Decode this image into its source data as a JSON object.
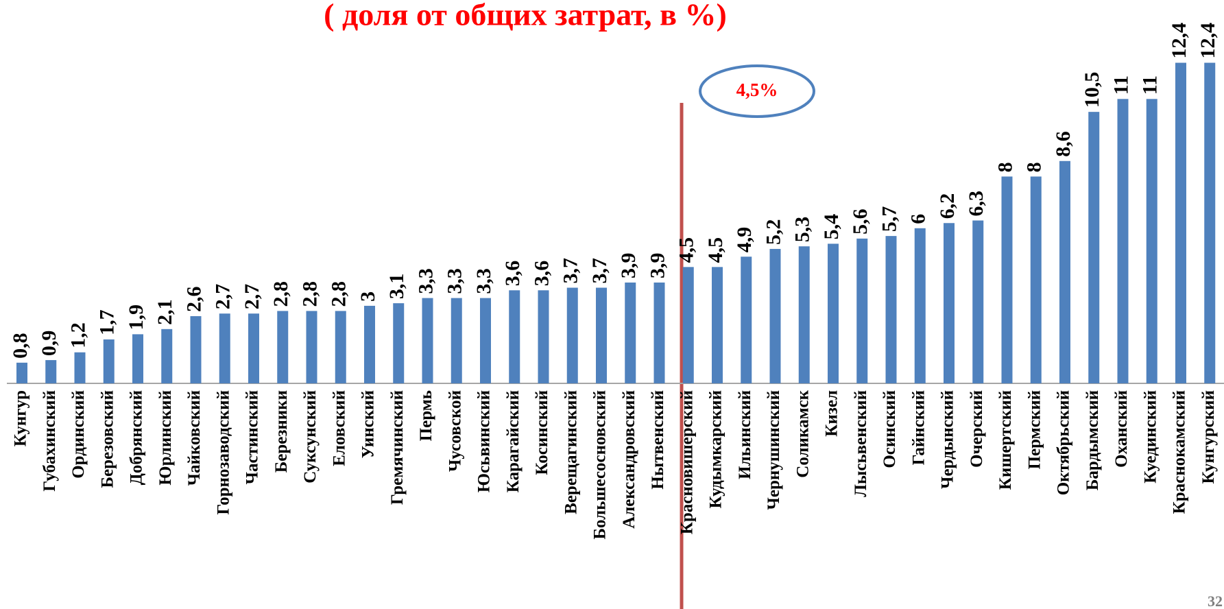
{
  "chart_data": {
    "type": "bar",
    "title": "( доля от общих затрат, в %)",
    "annotation": "4,5%",
    "page_number": "32",
    "color": "#4f81bd",
    "categories": [
      "Кунгур",
      "Губахинский",
      "Ординский",
      "Березовский",
      "Добрянский",
      "Юрлинский",
      "Чайковский",
      "Горнозаводский",
      "Частинский",
      "Березники",
      "Суксунский",
      "Еловский",
      "Уинский",
      "Гремячинский",
      "Пермь",
      "Чусовской",
      "Юсьвинский",
      "Карагайский",
      "Косинский",
      "Верещагинский",
      "Большесосновский",
      "Александровский",
      "Нытвенский",
      "Красновишерский",
      "Кудымкарский",
      "Ильинский",
      "Чернушинский",
      "Соликамск",
      "Кизел",
      "Лысьвенский",
      "Осинский",
      "Гайнский",
      "Чердынский",
      "Очерский",
      "Кишертский",
      "Пермский",
      "Октябрьский",
      "Бардымский",
      "Оханский",
      "Куединский",
      "Краснокамский",
      "Кунгурский"
    ],
    "values": [
      0.8,
      0.9,
      1.2,
      1.7,
      1.9,
      2.1,
      2.6,
      2.7,
      2.7,
      2.8,
      2.8,
      2.8,
      3,
      3.1,
      3.3,
      3.3,
      3.3,
      3.6,
      3.6,
      3.7,
      3.7,
      3.9,
      3.9,
      4.5,
      4.5,
      4.9,
      5.2,
      5.3,
      5.4,
      5.6,
      5.7,
      6,
      6.2,
      6.3,
      8,
      8,
      8.6,
      10.5,
      11,
      11,
      12.4,
      12.4
    ],
    "value_labels": [
      "0,8",
      "0,9",
      "1,2",
      "1,7",
      "1,9",
      "2,1",
      "2,6",
      "2,7",
      "2,7",
      "2,8",
      "2,8",
      "2,8",
      "3",
      "3,1",
      "3,3",
      "3,3",
      "3,3",
      "3,6",
      "3,6",
      "3,7",
      "3,7",
      "3,9",
      "3,9",
      "4,5",
      "4,5",
      "4,9",
      "5,2",
      "5,3",
      "5,4",
      "5,6",
      "5,7",
      "6",
      "6,2",
      "6,3",
      "8",
      "8",
      "8,6",
      "10,5",
      "11",
      "11",
      "12,4",
      "12,4"
    ]
  }
}
